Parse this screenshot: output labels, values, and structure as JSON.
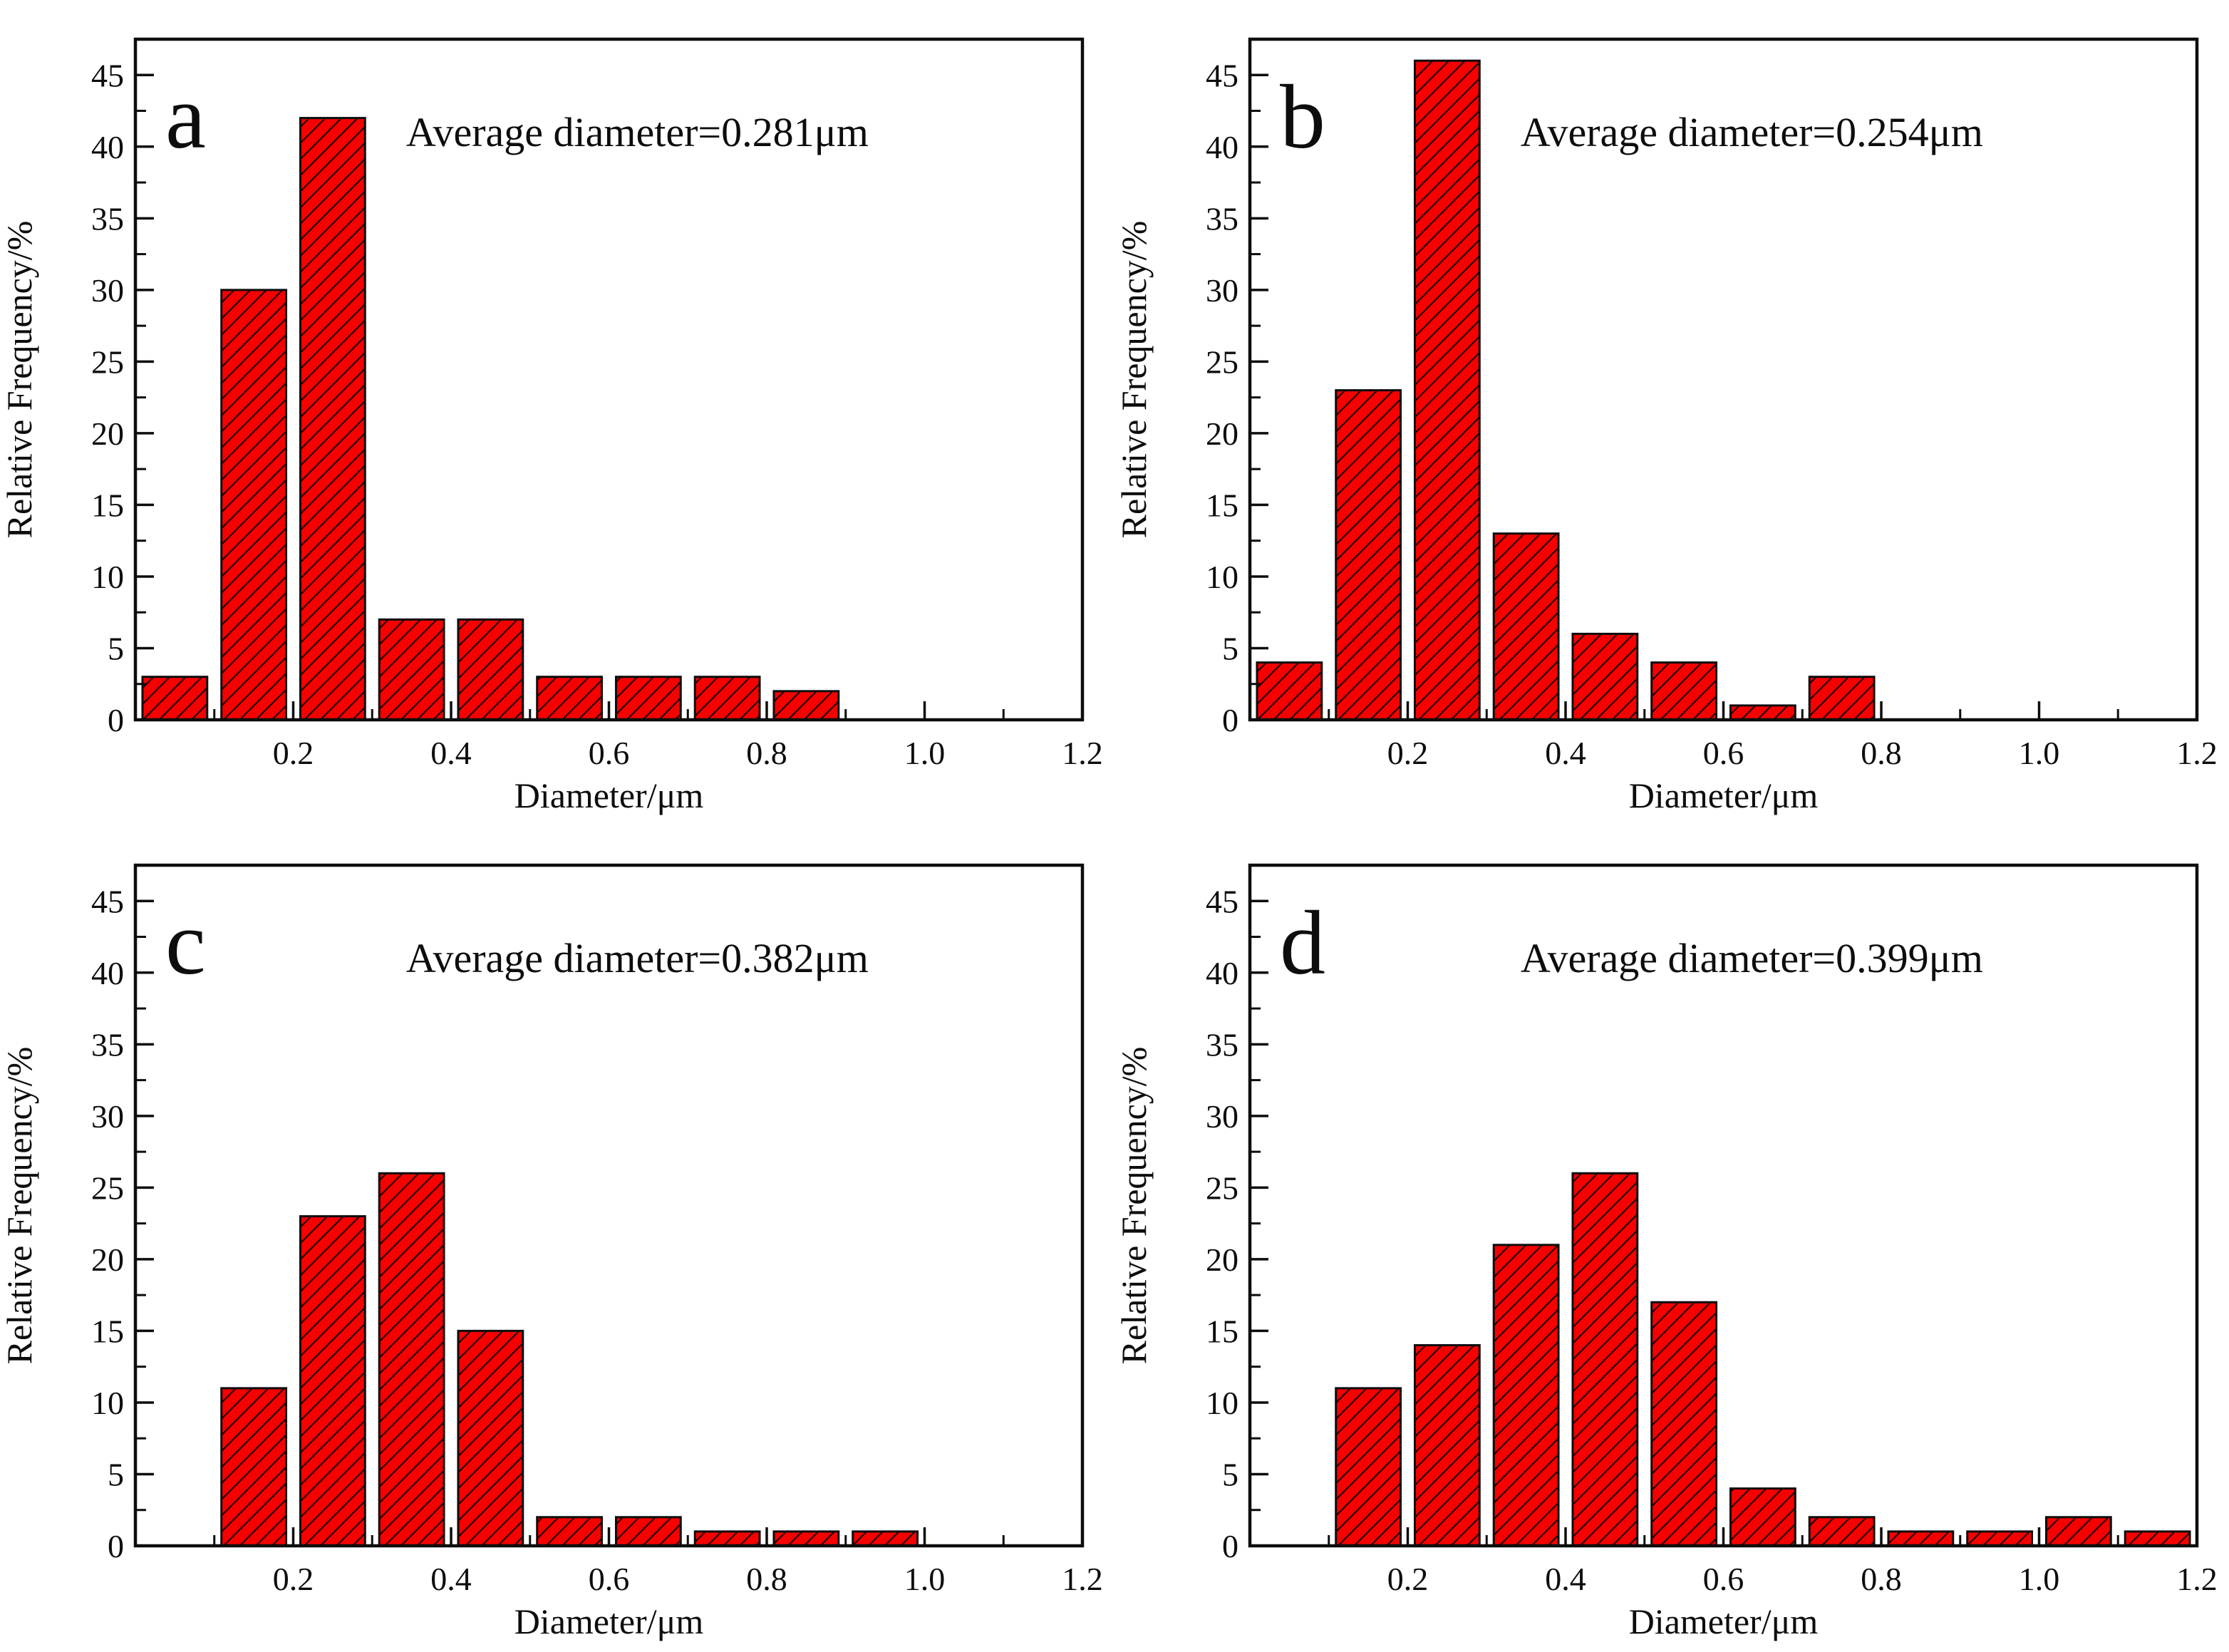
{
  "figure": {
    "background": "#ffffff",
    "bar_fill": "#f70000",
    "bar_edge": "#0d0d0d",
    "hatch_line_color": "#240000",
    "axis_color": "#0d0d0d"
  },
  "chart_data": [
    {
      "type": "bar",
      "panel_label": "a",
      "annotation": "Average diameter=0.281μm",
      "xlabel": "Diameter/μm",
      "ylabel": "Relative Frequency/%",
      "x_bin_centers": [
        0.05,
        0.15,
        0.25,
        0.35,
        0.45,
        0.55,
        0.65,
        0.75,
        0.85
      ],
      "values": [
        3,
        30,
        42,
        7,
        7,
        3,
        3,
        3,
        2
      ],
      "bin_width": 0.1,
      "bar_width": 0.082,
      "xlim": [
        0,
        1.2
      ],
      "ylim": [
        0,
        47.5
      ],
      "x_major_ticks": [
        0.2,
        0.4,
        0.6,
        0.8,
        1.0,
        1.2
      ],
      "x_minor_step": 0.1,
      "y_major_ticks": [
        0,
        5,
        10,
        15,
        20,
        25,
        30,
        35,
        40,
        45
      ],
      "y_minor_step": 2.5,
      "grid": false,
      "legend": "none",
      "bar_fill": "#f70000",
      "bar_hatch": "diagonal-forward",
      "bar_edge": "#0d0d0d"
    },
    {
      "type": "bar",
      "panel_label": "b",
      "annotation": "Average diameter=0.254μm",
      "xlabel": "Diameter/μm",
      "ylabel": "Relative Frequency/%",
      "x_bin_centers": [
        0.05,
        0.15,
        0.25,
        0.35,
        0.45,
        0.55,
        0.65,
        0.75
      ],
      "values": [
        4,
        23,
        46,
        13,
        6,
        4,
        1,
        3
      ],
      "bin_width": 0.1,
      "bar_width": 0.082,
      "xlim": [
        0,
        1.2
      ],
      "ylim": [
        0,
        47.5
      ],
      "x_major_ticks": [
        0.2,
        0.4,
        0.6,
        0.8,
        1.0,
        1.2
      ],
      "x_minor_step": 0.1,
      "y_major_ticks": [
        0,
        5,
        10,
        15,
        20,
        25,
        30,
        35,
        40,
        45
      ],
      "y_minor_step": 2.5,
      "grid": false,
      "legend": "none",
      "bar_fill": "#f70000",
      "bar_hatch": "diagonal-forward",
      "bar_edge": "#0d0d0d"
    },
    {
      "type": "bar",
      "panel_label": "c",
      "annotation": "Average diameter=0.382μm",
      "xlabel": "Diameter/μm",
      "ylabel": "Relative Frequency/%",
      "x_bin_centers": [
        0.15,
        0.25,
        0.35,
        0.45,
        0.55,
        0.65,
        0.75,
        0.85,
        0.95
      ],
      "values": [
        11,
        23,
        26,
        15,
        2,
        2,
        1,
        1,
        1
      ],
      "bin_width": 0.1,
      "bar_width": 0.082,
      "xlim": [
        0,
        1.2
      ],
      "ylim": [
        0,
        47.5
      ],
      "x_major_ticks": [
        0.2,
        0.4,
        0.6,
        0.8,
        1.0,
        1.2
      ],
      "x_minor_step": 0.1,
      "y_major_ticks": [
        0,
        5,
        10,
        15,
        20,
        25,
        30,
        35,
        40,
        45
      ],
      "y_minor_step": 2.5,
      "grid": false,
      "legend": "none",
      "bar_fill": "#f70000",
      "bar_hatch": "diagonal-forward",
      "bar_edge": "#0d0d0d"
    },
    {
      "type": "bar",
      "panel_label": "d",
      "annotation": "Average diameter=0.399μm",
      "xlabel": "Diameter/μm",
      "ylabel": "Relative Frequency/%",
      "x_bin_centers": [
        0.15,
        0.25,
        0.35,
        0.45,
        0.55,
        0.65,
        0.75,
        0.85,
        0.95,
        1.05,
        1.15
      ],
      "values": [
        11,
        14,
        21,
        26,
        17,
        4,
        2,
        1,
        1,
        2,
        1
      ],
      "bin_width": 0.1,
      "bar_width": 0.082,
      "xlim": [
        0,
        1.2
      ],
      "ylim": [
        0,
        47.5
      ],
      "x_major_ticks": [
        0.2,
        0.4,
        0.6,
        0.8,
        1.0,
        1.2
      ],
      "x_minor_step": 0.1,
      "y_major_ticks": [
        0,
        5,
        10,
        15,
        20,
        25,
        30,
        35,
        40,
        45
      ],
      "y_minor_step": 2.5,
      "grid": false,
      "legend": "none",
      "bar_fill": "#f70000",
      "bar_hatch": "diagonal-forward",
      "bar_edge": "#0d0d0d"
    }
  ]
}
